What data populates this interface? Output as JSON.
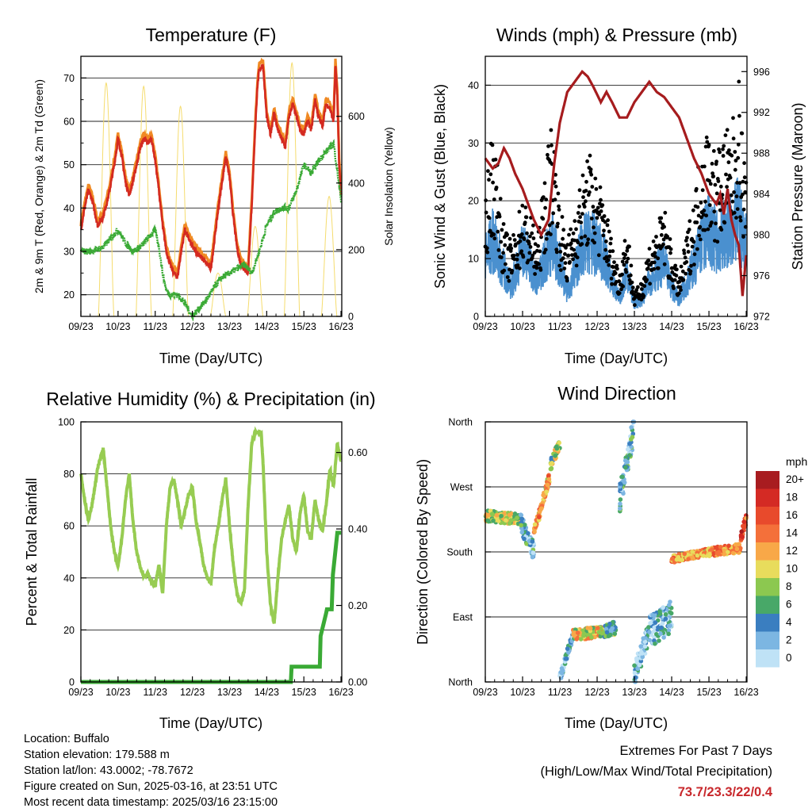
{
  "x_ticks": [
    "09/23",
    "10/23",
    "11/23",
    "12/23",
    "13/23",
    "14/23",
    "15/23",
    "16/23"
  ],
  "time_axis_label": "Time (Day/UTC)",
  "colors": {
    "temp_2m": "#d42a20",
    "temp_9m": "#f08a24",
    "dewpoint": "#3aaa35",
    "solar": "#f5dc6e",
    "wind": "#4a90cf",
    "gust": "#000000",
    "pressure": "#a61c1e",
    "rh": "#97cc52",
    "precip": "#3aaa35"
  },
  "panels": {
    "temperature": {
      "title": "Temperature (F)",
      "ylabel_left": "2m & 9m T (Red, Orange) & 2m Td (Green)",
      "ylabel_right": "Solar Insolation (Yellow)",
      "left_ticks": [
        "20",
        "30",
        "40",
        "50",
        "60",
        "70"
      ],
      "right_ticks": [
        "0",
        "200",
        "400",
        "600"
      ]
    },
    "winds": {
      "title": "Winds (mph) & Pressure (mb)",
      "ylabel_left": "Sonic Wind & Gust (Blue, Black)",
      "ylabel_right": "Station Pressure (Maroon)",
      "left_ticks": [
        "0",
        "10",
        "20",
        "30",
        "40"
      ],
      "right_ticks": [
        "972",
        "976",
        "980",
        "984",
        "988",
        "992",
        "996"
      ]
    },
    "humidity": {
      "title": "Relative Humidity (%) & Precipitation (in)",
      "ylabel_left": "Percent & Total Rainfall",
      "left_ticks": [
        "0",
        "20",
        "40",
        "60",
        "80",
        "100"
      ],
      "right_ticks": [
        "0.00",
        "0.20",
        "0.40",
        "0.60"
      ]
    },
    "direction": {
      "title": "Wind Direction",
      "ylabel_left": "Direction (Colored By Speed)",
      "dir_ticks": [
        "North",
        "East",
        "South",
        "West",
        "North"
      ],
      "legend_title": "mph",
      "legend_labels": [
        "20+",
        "18",
        "16",
        "14",
        "12",
        "10",
        "8",
        "6",
        "4",
        "2",
        "0"
      ],
      "legend_colors": [
        "#a81c20",
        "#d42a24",
        "#e84a2c",
        "#f4703a",
        "#f8a848",
        "#e8dc5c",
        "#8cc850",
        "#48a868",
        "#3a7ec0",
        "#7cb6e2",
        "#bfe2f6"
      ]
    }
  },
  "chart_data": [
    {
      "type": "line",
      "title": "Temperature (F)",
      "xlabel": "Time (Day/UTC)",
      "ylabel": "2m & 9m T (Red, Orange) & 2m Td (Green)",
      "ylabel_right": "Solar Insolation (Yellow)",
      "ylim": [
        15,
        75
      ],
      "ylim_right": [
        0,
        780
      ],
      "x_range_days": [
        9,
        16.02
      ],
      "series": [
        {
          "name": "2m T",
          "x": [
            9.0,
            9.1,
            9.2,
            9.3,
            9.45,
            9.6,
            9.75,
            9.9,
            10.0,
            10.1,
            10.2,
            10.3,
            10.4,
            10.5,
            10.6,
            10.7,
            10.8,
            10.9,
            11.0,
            11.1,
            11.2,
            11.3,
            11.4,
            11.5,
            11.6,
            11.7,
            11.8,
            11.9,
            12.0,
            12.1,
            12.2,
            12.3,
            12.4,
            12.5,
            12.6,
            12.7,
            12.8,
            12.9,
            13.0,
            13.1,
            13.2,
            13.3,
            13.4,
            13.5,
            13.6,
            13.7,
            13.75,
            13.8,
            13.9,
            14.0,
            14.1,
            14.2,
            14.3,
            14.4,
            14.5,
            14.6,
            14.7,
            14.8,
            14.9,
            15.0,
            15.1,
            15.2,
            15.3,
            15.4,
            15.5,
            15.6,
            15.7,
            15.8,
            15.85,
            15.9,
            15.95,
            16.0
          ],
          "values": [
            35,
            40,
            44,
            42,
            36,
            38,
            43,
            50,
            56,
            52,
            46,
            43,
            46,
            50,
            54,
            56,
            55,
            56,
            51,
            44,
            36,
            30,
            27,
            25,
            24,
            30,
            35,
            33,
            31,
            30,
            29,
            28,
            27,
            26,
            33,
            40,
            46,
            52,
            47,
            38,
            31,
            27,
            26,
            25,
            41,
            60,
            68,
            72,
            73,
            61,
            57,
            62,
            58,
            56,
            54,
            61,
            64,
            61,
            58,
            57,
            60,
            58,
            65,
            61,
            59,
            64,
            63,
            60,
            73,
            66,
            50,
            42
          ]
        },
        {
          "name": "9m T",
          "x": [
            9.0,
            9.5,
            10.0,
            10.5,
            11.0,
            11.5,
            12.0,
            12.5,
            13.0,
            13.5,
            14.0,
            14.5,
            15.0,
            15.5,
            16.0
          ],
          "values": [
            36,
            39,
            55,
            51,
            51,
            26,
            30,
            30,
            48,
            28,
            73,
            55,
            58,
            63,
            43
          ]
        },
        {
          "name": "2m Td",
          "x": [
            9.0,
            9.3,
            9.6,
            9.8,
            10.0,
            10.2,
            10.4,
            10.6,
            10.8,
            11.0,
            11.1,
            11.2,
            11.3,
            11.4,
            11.6,
            11.8,
            12.0,
            12.2,
            12.4,
            12.6,
            12.8,
            13.0,
            13.2,
            13.4,
            13.6,
            13.8,
            14.0,
            14.2,
            14.4,
            14.6,
            14.8,
            15.0,
            15.2,
            15.4,
            15.6,
            15.8,
            16.0
          ],
          "values": [
            30,
            30,
            31,
            33,
            35,
            32,
            30,
            31,
            33,
            35,
            31,
            25,
            21,
            20,
            20,
            18,
            15,
            17,
            19,
            22,
            24,
            25,
            26,
            27,
            25,
            30,
            36,
            39,
            40,
            40,
            44,
            50,
            48,
            51,
            53,
            55,
            42
          ]
        },
        {
          "name": "Solar Insolation",
          "axis": "right",
          "peaks": [
            {
              "x": 9.68,
              "value": 700
            },
            {
              "x": 10.69,
              "value": 690
            },
            {
              "x": 11.68,
              "value": 630
            },
            {
              "x": 12.69,
              "value": 130
            },
            {
              "x": 13.69,
              "value": 270
            },
            {
              "x": 14.68,
              "value": 760
            },
            {
              "x": 15.68,
              "value": 360
            }
          ]
        }
      ]
    },
    {
      "type": "line",
      "title": "Winds (mph) & Pressure (mb)",
      "xlabel": "Time (Day/UTC)",
      "ylabel": "Sonic Wind & Gust (Blue, Black)",
      "ylabel_right": "Station Pressure (Maroon)",
      "ylim": [
        0,
        45
      ],
      "ylim_right": [
        972,
        997.5
      ],
      "x_range_days": [
        9,
        16.02
      ],
      "series": [
        {
          "name": "Sonic Wind",
          "x": [
            9.0,
            9.2,
            9.5,
            9.7,
            10.0,
            10.2,
            10.4,
            10.6,
            10.8,
            11.0,
            11.2,
            11.4,
            11.6,
            11.8,
            12.0,
            12.2,
            12.4,
            12.6,
            12.8,
            13.0,
            13.2,
            13.4,
            13.6,
            13.8,
            14.0,
            14.2,
            14.4,
            14.6,
            14.8,
            15.0,
            15.2,
            15.4,
            15.6,
            15.8,
            16.0
          ],
          "values": [
            10,
            13,
            8,
            5,
            12,
            9,
            6,
            10,
            13,
            9,
            4,
            8,
            12,
            13,
            12,
            10,
            6,
            3,
            8,
            2,
            3,
            6,
            8,
            9,
            5,
            3,
            6,
            9,
            13,
            15,
            13,
            14,
            15,
            17,
            12
          ]
        },
        {
          "name": "Gust",
          "x": [
            9.0,
            9.2,
            9.5,
            9.7,
            10.0,
            10.2,
            10.4,
            10.6,
            10.8,
            11.0,
            11.2,
            11.4,
            11.6,
            11.8,
            12.0,
            12.2,
            12.4,
            12.6,
            12.8,
            13.0,
            13.2,
            13.4,
            13.6,
            13.8,
            14.0,
            14.2,
            14.4,
            14.6,
            14.8,
            15.0,
            15.2,
            15.4,
            15.6,
            15.8,
            16.0
          ],
          "values": [
            17,
            26,
            12,
            10,
            16,
            14,
            10,
            20,
            27,
            15,
            10,
            15,
            19,
            22,
            19,
            16,
            10,
            6,
            13,
            3,
            5,
            10,
            12,
            15,
            9,
            5,
            11,
            16,
            24,
            26,
            22,
            25,
            25,
            32,
            18
          ]
        },
        {
          "name": "Station Pressure",
          "axis": "right",
          "x": [
            9.0,
            9.2,
            9.35,
            9.5,
            9.65,
            9.8,
            10.0,
            10.15,
            10.3,
            10.5,
            10.7,
            10.85,
            11.0,
            11.2,
            11.4,
            11.6,
            11.75,
            11.9,
            12.1,
            12.25,
            12.4,
            12.6,
            12.8,
            13.0,
            13.2,
            13.4,
            13.6,
            13.8,
            14.0,
            14.2,
            14.4,
            14.6,
            14.8,
            15.0,
            15.2,
            15.3,
            15.4,
            15.5,
            15.6,
            15.7,
            15.8,
            15.9,
            16.0
          ],
          "values": [
            987.5,
            986.5,
            987.0,
            988.5,
            987.5,
            986,
            984.5,
            983,
            981.5,
            980,
            981.5,
            987,
            991,
            994,
            995,
            996,
            995.5,
            994.5,
            993,
            994,
            993,
            991.5,
            991.5,
            993,
            994,
            995,
            994,
            993.5,
            992.5,
            991.5,
            989.5,
            987.5,
            986,
            984,
            983,
            984,
            982,
            984.5,
            981.5,
            980,
            979,
            974,
            978
          ]
        }
      ]
    },
    {
      "type": "line",
      "title": "Relative Humidity (%) & Precipitation (in)",
      "xlabel": "Time (Day/UTC)",
      "ylabel": "Percent & Total Rainfall",
      "ylim": [
        0,
        100
      ],
      "ylim_right": [
        0,
        0.68
      ],
      "x_range_days": [
        9,
        16.02
      ],
      "series": [
        {
          "name": "Relative Humidity",
          "x": [
            9.0,
            9.1,
            9.2,
            9.3,
            9.45,
            9.6,
            9.7,
            9.8,
            9.9,
            10.0,
            10.1,
            10.2,
            10.3,
            10.4,
            10.5,
            10.6,
            10.7,
            10.8,
            10.9,
            11.0,
            11.1,
            11.2,
            11.3,
            11.4,
            11.5,
            11.6,
            11.7,
            11.8,
            11.9,
            12.0,
            12.1,
            12.2,
            12.3,
            12.4,
            12.5,
            12.6,
            12.7,
            12.8,
            12.9,
            13.0,
            13.1,
            13.2,
            13.3,
            13.4,
            13.5,
            13.6,
            13.7,
            13.8,
            13.85,
            13.9,
            14.0,
            14.1,
            14.2,
            14.3,
            14.4,
            14.5,
            14.6,
            14.7,
            14.8,
            14.9,
            15.0,
            15.1,
            15.2,
            15.3,
            15.4,
            15.5,
            15.6,
            15.7,
            15.8,
            15.9,
            15.95,
            16.0
          ],
          "values": [
            80,
            70,
            62,
            68,
            82,
            90,
            75,
            60,
            50,
            44,
            55,
            70,
            80,
            62,
            50,
            44,
            40,
            42,
            38,
            37,
            45,
            34,
            60,
            75,
            78,
            70,
            60,
            66,
            72,
            75,
            62,
            54,
            45,
            40,
            38,
            52,
            60,
            70,
            78,
            60,
            45,
            34,
            30,
            35,
            68,
            92,
            96,
            96,
            96,
            85,
            50,
            30,
            22,
            40,
            55,
            62,
            68,
            55,
            50,
            65,
            72,
            58,
            55,
            70,
            62,
            58,
            68,
            82,
            75,
            92,
            88,
            85
          ]
        },
        {
          "name": "Total Precipitation",
          "axis": "right",
          "x": [
            9.0,
            14.65,
            14.67,
            15.43,
            15.45,
            15.6,
            15.62,
            15.75,
            15.78,
            15.9,
            16.0
          ],
          "values": [
            0.0,
            0.0,
            0.04,
            0.04,
            0.12,
            0.18,
            0.19,
            0.19,
            0.28,
            0.39,
            0.39
          ]
        }
      ]
    },
    {
      "type": "scatter",
      "title": "Wind Direction",
      "xlabel": "Time (Day/UTC)",
      "ylabel": "Direction (Colored By Speed)",
      "ylim_degrees": [
        0,
        360
      ],
      "x_range_days": [
        9,
        16.02
      ],
      "color_scale_mph": [
        0,
        20
      ],
      "segments": [
        {
          "x0": 9.0,
          "x1": 9.95,
          "dir0": 230,
          "dir1": 225,
          "spread": 15,
          "speed": 9
        },
        {
          "x0": 9.95,
          "x1": 10.3,
          "dir0": 220,
          "dir1": 180,
          "spread": 25,
          "speed": 4
        },
        {
          "x0": 10.3,
          "x1": 10.75,
          "dir0": 205,
          "dir1": 290,
          "spread": 15,
          "speed": 12
        },
        {
          "x0": 10.75,
          "x1": 11.0,
          "dir0": 300,
          "dir1": 330,
          "spread": 15,
          "speed": 8
        },
        {
          "x0": 11.0,
          "x1": 11.35,
          "dir0": 5,
          "dir1": 65,
          "spread": 12,
          "speed": 3
        },
        {
          "x0": 11.35,
          "x1": 12.2,
          "dir0": 65,
          "dir1": 70,
          "spread": 15,
          "speed": 10
        },
        {
          "x0": 12.2,
          "x1": 12.5,
          "dir0": 70,
          "dir1": 75,
          "spread": 20,
          "speed": 6
        },
        {
          "x0": 12.6,
          "x1": 13.0,
          "dir0": 250,
          "dir1": 355,
          "spread": 40,
          "speed": 4
        },
        {
          "x0": 13.0,
          "x1": 13.4,
          "dir0": 10,
          "dir1": 70,
          "spread": 30,
          "speed": 2
        },
        {
          "x0": 13.4,
          "x1": 14.0,
          "dir0": 70,
          "dir1": 90,
          "spread": 45,
          "speed": 3
        },
        {
          "x0": 14.0,
          "x1": 15.0,
          "dir0": 170,
          "dir1": 180,
          "spread": 10,
          "speed": 12
        },
        {
          "x0": 15.0,
          "x1": 15.85,
          "dir0": 180,
          "dir1": 185,
          "spread": 12,
          "speed": 13
        },
        {
          "x0": 15.85,
          "x1": 16.0,
          "dir0": 200,
          "dir1": 225,
          "spread": 15,
          "speed": 16
        }
      ]
    }
  ],
  "info": {
    "location": "Location: Buffalo",
    "elevation": "Station elevation: 179.588 m",
    "latlon": "Station lat/lon: 43.0002; -78.7672",
    "created": "Figure created on Sun, 2025-03-16, at 23:51 UTC",
    "recent": "Most recent data timestamp: 2025/03/16 23:15:00"
  },
  "extremes": {
    "title": "Extremes For Past 7 Days",
    "subtitle": "(High/Low/Max Wind/Total Precipitation)",
    "values": "73.7/23.3/22/0.4"
  }
}
